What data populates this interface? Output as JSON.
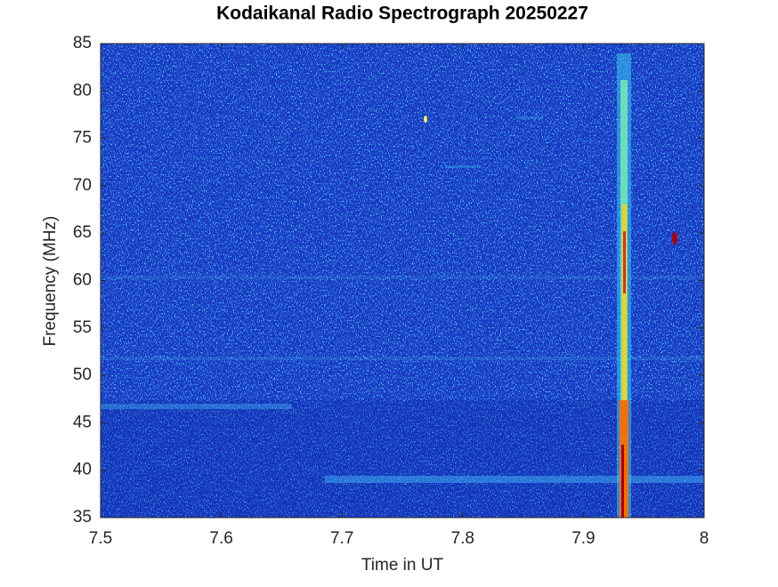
{
  "chart_data": {
    "type": "spectrogram",
    "title": "Kodaikanal Radio Spectrograph  20250227",
    "x_label": "Time in UT",
    "y_label": "Frequency (MHz)",
    "xlim": [
      7.5,
      8
    ],
    "xticks": [
      7.5,
      7.6,
      7.7,
      7.8,
      7.9,
      8
    ],
    "ylim": [
      35,
      85
    ],
    "yticks": [
      35,
      40,
      45,
      50,
      55,
      60,
      65,
      70,
      75,
      80,
      85
    ],
    "colormap": "jet"
  }
}
